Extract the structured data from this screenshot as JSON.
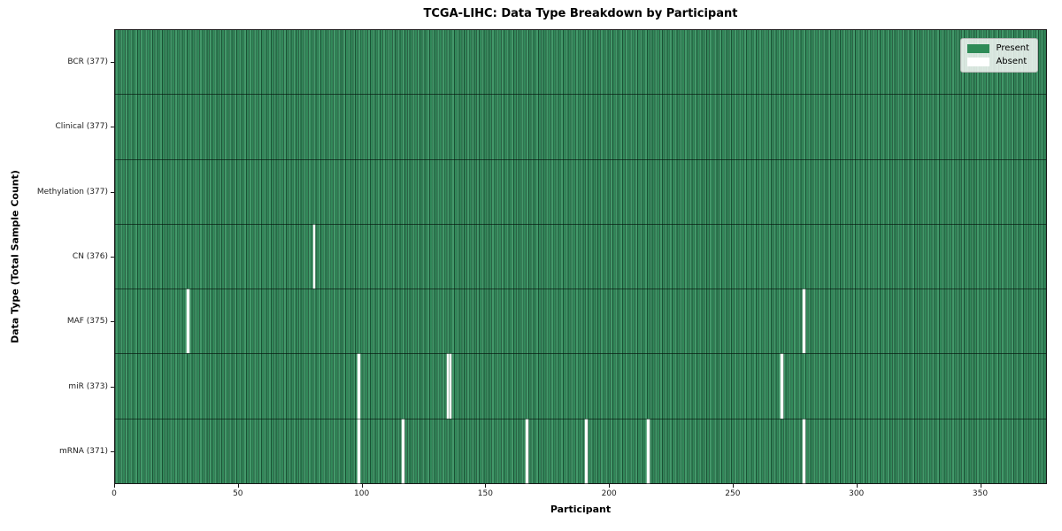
{
  "title": "TCGA-LIHC: Data Type Breakdown by Participant",
  "axes": {
    "xlabel": "Participant",
    "ylabel": "Data Type (Total Sample Count)"
  },
  "legend": {
    "present_label": "Present",
    "absent_label": "Absent"
  },
  "colors": {
    "present": "#2e8b57",
    "absent": "#ffffff",
    "cell_edge": "#1d5737",
    "spine": "#1a1a1a"
  },
  "chart_data": {
    "type": "heatmap",
    "title": "TCGA-LIHC: Data Type Breakdown by Participant",
    "xlabel": "Participant",
    "ylabel": "Data Type (Total Sample Count)",
    "legend_entries": [
      {
        "label": "Present",
        "color": "#2e8b57"
      },
      {
        "label": "Absent",
        "color": "#ffffff"
      }
    ],
    "legend_position": "upper right",
    "n_participants": 377,
    "x_axis": {
      "min": 0,
      "max": 377,
      "ticks": [
        0,
        50,
        100,
        150,
        200,
        250,
        300,
        350
      ]
    },
    "rows": [
      {
        "label": "BCR (377)",
        "data_type": "BCR",
        "total": 377,
        "absent_participants": []
      },
      {
        "label": "Clinical (377)",
        "data_type": "Clinical",
        "total": 377,
        "absent_participants": []
      },
      {
        "label": "Methylation (377)",
        "data_type": "Methylation",
        "total": 377,
        "absent_participants": []
      },
      {
        "label": "CN (376)",
        "data_type": "CN",
        "total": 376,
        "absent_participants": [
          80
        ]
      },
      {
        "label": "MAF (375)",
        "data_type": "MAF",
        "total": 375,
        "absent_participants": [
          29,
          278
        ]
      },
      {
        "label": "miR (373)",
        "data_type": "miR",
        "total": 373,
        "absent_participants": [
          98,
          134,
          135,
          269
        ]
      },
      {
        "label": "mRNA (371)",
        "data_type": "mRNA",
        "total": 371,
        "absent_participants": [
          98,
          116,
          166,
          190,
          215,
          278
        ]
      }
    ]
  }
}
